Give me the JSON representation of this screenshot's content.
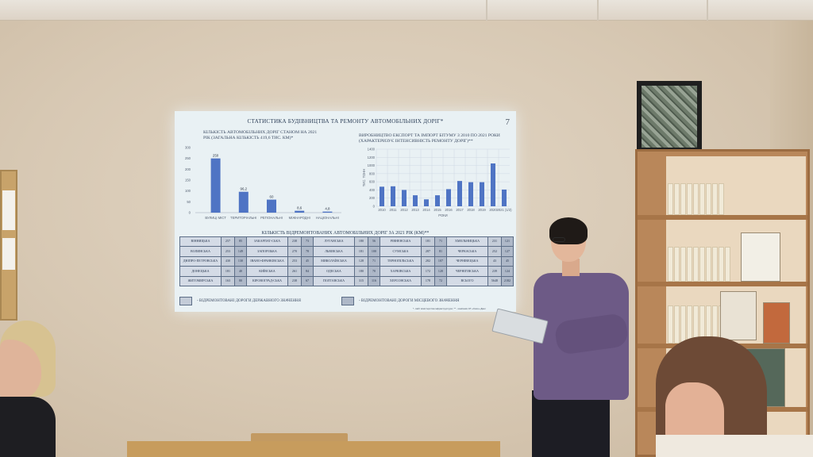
{
  "slide": {
    "title": "СТАТИСТИКА БУДІВНИЦТВА ТА РЕМОНТУ АВТОМОБІЛЬНИХ ДОРІГ*",
    "page_number": "7",
    "left_chart_title_line1": "КІЛЬКІСТЬ АВТОМОБІЛЬНИХ ДОРІГ СТАНОМ НА 2021",
    "left_chart_title_line2": "РІК (ЗАГАЛЬНА КІЛЬКІСТЬ 419,6 ТИС. КМ)*",
    "right_chart_title_line1": "ВИРОБНИЦТВО ЕКСПОРТ ТА ІМПОРТ БІТУМУ З 2010 ПО 2021 РОКИ",
    "right_chart_title_line2": "(ХАРАКТЕРИЗУЄ ІНТЕНСИВНІСТЬ РЕМОНТУ ДОРІГ)**",
    "grid_title": "КІЛЬКІСТЬ ВІДРЕМОНТОВАНИХ АВТОМОБІЛЬНИХ ДОРІГ ЗА 2021 РІК (КМ)**",
    "legend_state": "- ВІДРЕМОНТОВАНІ ДОРОГИ ДЕРЖАВНОГО ЗНАЧЕННЯ",
    "legend_local": "- ВІДРЕМОНТОВАНІ ДОРОГИ МІСЦЕВОГО ЗНАЧЕННЯ",
    "footnote": "*- сайт міністерства інфраструктури; ** - компанія АТ «Сахо» Дані"
  },
  "chart_data": [
    {
      "type": "bar",
      "categories": [
        "ВУЛИЦІ МІСТ",
        "ТЕРИТОРІАЛЬНІ",
        "РЕГІОНАЛЬНІ",
        "МІЖНАРОДНІ",
        "НАЦІОНАЛЬНІ"
      ],
      "values": [
        250,
        96.2,
        60,
        8.6,
        4.8
      ],
      "value_labels": [
        "250",
        "96,2",
        "60",
        "8,6",
        "4,8"
      ],
      "yticks": [
        "300",
        "250",
        "200",
        "150",
        "100",
        "50",
        "0"
      ],
      "ylim": [
        0,
        300
      ],
      "color": "#4f74c4"
    },
    {
      "type": "bar",
      "categories": [
        "2010",
        "2011",
        "2012",
        "2013",
        "2014",
        "2015",
        "2016",
        "2017",
        "2018",
        "2019",
        "2020",
        "2021 (1/2)"
      ],
      "values": [
        480,
        490,
        400,
        270,
        170,
        270,
        420,
        620,
        590,
        590,
        1050,
        410
      ],
      "yticks": [
        "1400",
        "1200",
        "1000",
        "800",
        "600",
        "400",
        "200",
        "0"
      ],
      "ylim": [
        0,
        1400
      ],
      "ylabel": "ТИС. ТОНН",
      "xlabel": "РОКИ",
      "grid": true,
      "color": "#4f74c4"
    }
  ],
  "regions_table": {
    "rows": [
      [
        [
          "ВІННИЦЬКА",
          "257",
          "85"
        ],
        [
          "ЗАКАРПАТ-СЬКА",
          "238",
          "73"
        ],
        [
          "ЛУГАНСЬКА",
          "180",
          "56"
        ],
        [
          "РІВНЕНСЬКА",
          "181",
          "71"
        ],
        [
          "ХМЕЛЬНИЦЬКА",
          "231",
          "121"
        ]
      ],
      [
        [
          "ВОЛИНСЬКА",
          "253",
          "149"
        ],
        [
          "ЗАПОРІЗЬКА",
          "270",
          "78"
        ],
        [
          "ЛЬВІВСЬКА",
          "181",
          "100"
        ],
        [
          "СУМСЬКА",
          "287",
          "81"
        ],
        [
          "ЧЕРКАСЬКА",
          "252",
          "127"
        ]
      ],
      [
        [
          "ДНІПРО-ПЕТРОВСЬКА",
          "430",
          "130"
        ],
        [
          "ІВАНО-ФРАНКІВСЬКА",
          "253",
          "45"
        ],
        [
          "МИКОЛАЇВСЬКА",
          "128",
          "71"
        ],
        [
          "ТЕРНОПІЛЬСЬКА",
          "282",
          "107"
        ],
        [
          "ЧЕРНІВЕЦЬКА",
          "43",
          "45"
        ]
      ],
      [
        [
          "ДОНЕЦЬКА",
          "181",
          "40"
        ],
        [
          "КИЇВСЬКА",
          "261",
          "84"
        ],
        [
          "ОДЕСЬКА",
          "180",
          "70"
        ],
        [
          "ХАРКІВСЬКА",
          "172",
          "120"
        ],
        [
          "ЧЕРНІГІВСЬКА",
          "239",
          "124"
        ]
      ],
      [
        [
          "ЖИТОМИРСЬКА",
          "163",
          "80"
        ],
        [
          "КІРОВОГРАД-СЬКА",
          "238",
          "67"
        ],
        [
          "ПОЛТАВСЬКА",
          "315",
          "116"
        ],
        [
          "ХЕРСОНСЬКА",
          "178",
          "72"
        ],
        [
          "ВСЬОГО",
          "5648",
          "2182"
        ]
      ]
    ]
  }
}
